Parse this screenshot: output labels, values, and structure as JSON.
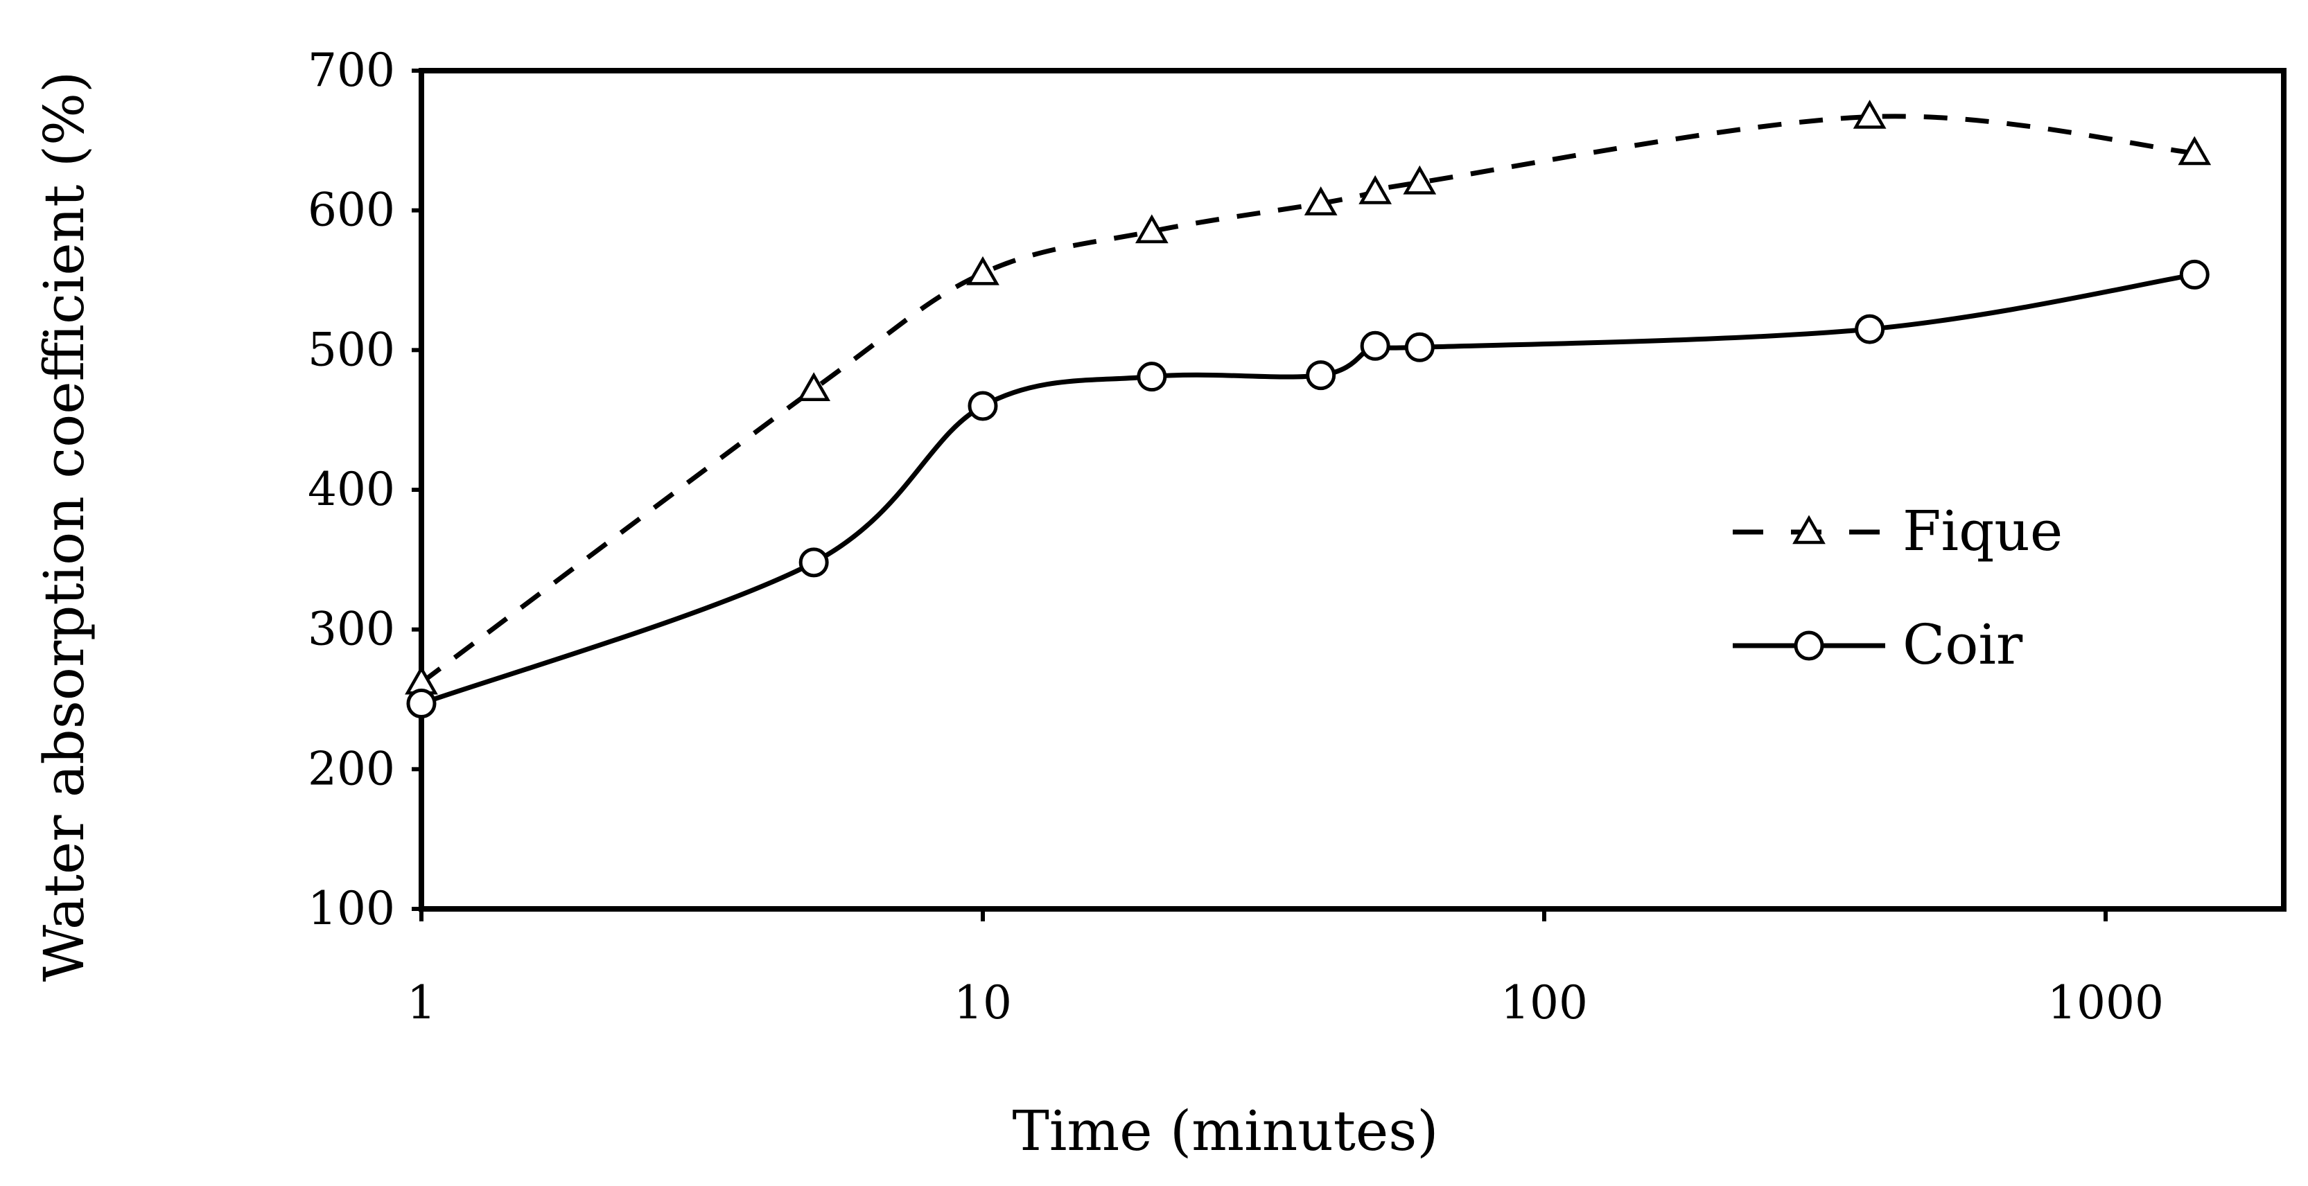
{
  "chart_data": {
    "type": "line",
    "title": "",
    "xlabel": "Time (minutes)",
    "ylabel": "Water absorption coefficient (%)",
    "xscale": "log",
    "xlim": [
      1,
      2000
    ],
    "ylim": [
      100,
      700
    ],
    "xticks": [
      1,
      10,
      100,
      1000
    ],
    "xtick_labels": [
      "1",
      "10",
      "100",
      "1000"
    ],
    "yticks": [
      100,
      200,
      300,
      400,
      500,
      600,
      700
    ],
    "ytick_labels": [
      "100",
      "200",
      "300",
      "400",
      "500",
      "600",
      "700"
    ],
    "grid": false,
    "legend_position": "right-center",
    "series": [
      {
        "name": "Fique",
        "marker": "triangle",
        "line_style": "dashed",
        "x": [
          1,
          5,
          10,
          20,
          40,
          50,
          60,
          380,
          1440
        ],
        "y": [
          262,
          472,
          555,
          585,
          605,
          613,
          620,
          667,
          641
        ]
      },
      {
        "name": "Coir",
        "marker": "circle",
        "line_style": "solid",
        "x": [
          1,
          5,
          10,
          20,
          40,
          50,
          60,
          380,
          1440
        ],
        "y": [
          247,
          348,
          460,
          481,
          482,
          503,
          502,
          515,
          554
        ]
      }
    ]
  }
}
